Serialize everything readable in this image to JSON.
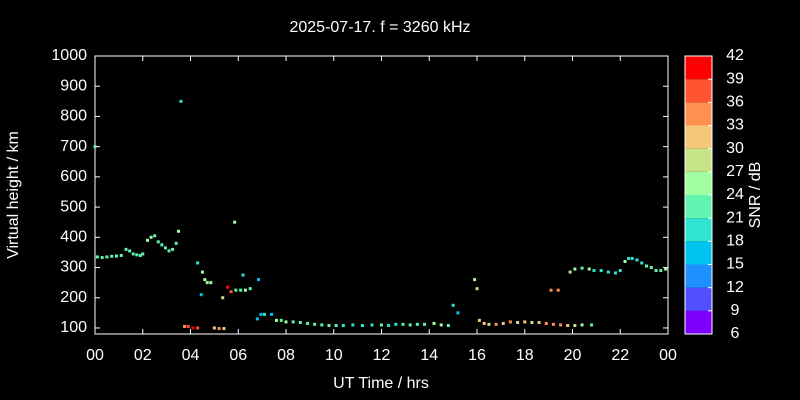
{
  "chart_data": {
    "type": "scatter",
    "title": "2025-07-17. f = 3260 kHz",
    "x_label": "UT Time / hrs",
    "y_label": "Virtual height / km",
    "colorbar_label": "SNR / dB",
    "xlim": [
      0,
      24
    ],
    "xticks": [
      {
        "value": 0,
        "label": "00"
      },
      {
        "value": 2,
        "label": "02"
      },
      {
        "value": 4,
        "label": "04"
      },
      {
        "value": 6,
        "label": "06"
      },
      {
        "value": 8,
        "label": "08"
      },
      10,
      12,
      14,
      16,
      18,
      20,
      22,
      {
        "value": 24,
        "label": "00"
      }
    ],
    "ylim": [
      80,
      1000
    ],
    "yticks": [
      100,
      200,
      300,
      400,
      500,
      600,
      700,
      800,
      900,
      1000
    ],
    "clim": [
      6,
      42
    ],
    "cticks": [
      6,
      9,
      12,
      15,
      18,
      21,
      24,
      27,
      30,
      33,
      36,
      39,
      42
    ],
    "colormap": [
      "#8000ff",
      "#5050ff",
      "#1e90ff",
      "#00c4f0",
      "#30e4d0",
      "#60f4b0",
      "#a0ffa0",
      "#c8e488",
      "#f4c878",
      "#ff9050",
      "#ff5432",
      "#ff0000"
    ],
    "x": [
      0.0,
      0.1,
      0.3,
      0.5,
      0.7,
      0.9,
      1.1,
      1.3,
      1.45,
      1.6,
      1.75,
      1.9,
      2.0,
      2.2,
      2.35,
      2.5,
      2.65,
      2.8,
      2.95,
      3.1,
      3.25,
      3.4,
      3.5,
      3.6,
      3.75,
      3.9,
      4.1,
      4.3,
      4.3,
      4.45,
      4.5,
      4.6,
      4.7,
      4.85,
      5.0,
      5.2,
      5.4,
      5.35,
      5.55,
      5.7,
      5.85,
      5.9,
      6.1,
      6.2,
      6.3,
      6.5,
      6.8,
      6.85,
      6.95,
      7.1,
      7.4,
      7.6,
      7.8,
      8.0,
      8.3,
      8.6,
      8.9,
      9.2,
      9.5,
      9.8,
      10.1,
      10.4,
      10.8,
      11.2,
      11.6,
      12.0,
      12.3,
      12.6,
      12.9,
      13.2,
      13.5,
      13.8,
      14.2,
      14.5,
      14.8,
      15.0,
      15.2,
      15.9,
      16.0,
      16.1,
      16.3,
      16.5,
      16.8,
      17.1,
      17.4,
      17.7,
      18.0,
      18.3,
      18.6,
      18.9,
      19.2,
      19.5,
      19.8,
      20.1,
      20.4,
      20.8,
      19.1,
      19.4,
      19.9,
      20.1,
      20.4,
      20.7,
      20.9,
      21.2,
      21.5,
      21.8,
      22.0,
      22.2,
      22.35,
      22.5,
      22.7,
      22.9,
      23.1,
      23.3,
      23.5,
      23.7,
      23.9
    ],
    "y": [
      700,
      335,
      333,
      335,
      337,
      338,
      340,
      360,
      355,
      345,
      342,
      340,
      345,
      390,
      400,
      405,
      385,
      375,
      365,
      355,
      360,
      380,
      420,
      850,
      105,
      105,
      100,
      100,
      315,
      210,
      285,
      260,
      250,
      250,
      100,
      98,
      98,
      200,
      235,
      220,
      450,
      225,
      225,
      275,
      225,
      230,
      130,
      260,
      145,
      145,
      145,
      125,
      125,
      120,
      120,
      118,
      115,
      112,
      110,
      108,
      108,
      108,
      110,
      108,
      110,
      110,
      108,
      112,
      112,
      110,
      112,
      112,
      115,
      110,
      108,
      175,
      150,
      260,
      230,
      125,
      115,
      112,
      112,
      115,
      120,
      118,
      120,
      118,
      118,
      115,
      112,
      110,
      108,
      108,
      110,
      110,
      225,
      225,
      285,
      295,
      298,
      295,
      290,
      290,
      285,
      282,
      290,
      320,
      330,
      330,
      325,
      315,
      305,
      300,
      290,
      290,
      295
    ],
    "snr": [
      21,
      21,
      21,
      21,
      21,
      21,
      21,
      21,
      21,
      21,
      21,
      21,
      21,
      24,
      24,
      21,
      21,
      21,
      21,
      21,
      21,
      21,
      24,
      18,
      33,
      36,
      39,
      36,
      18,
      15,
      24,
      24,
      24,
      24,
      30,
      33,
      30,
      27,
      39,
      36,
      24,
      21,
      21,
      18,
      24,
      21,
      15,
      15,
      15,
      18,
      15,
      24,
      21,
      24,
      21,
      21,
      21,
      21,
      21,
      21,
      21,
      18,
      18,
      18,
      18,
      21,
      18,
      18,
      21,
      21,
      21,
      21,
      24,
      24,
      21,
      18,
      15,
      24,
      27,
      30,
      30,
      27,
      33,
      30,
      33,
      27,
      30,
      27,
      30,
      33,
      33,
      33,
      30,
      27,
      24,
      21,
      33,
      33,
      27,
      24,
      21,
      24,
      18,
      18,
      18,
      18,
      18,
      24,
      18,
      18,
      18,
      18,
      21,
      21,
      21,
      21,
      24
    ]
  }
}
